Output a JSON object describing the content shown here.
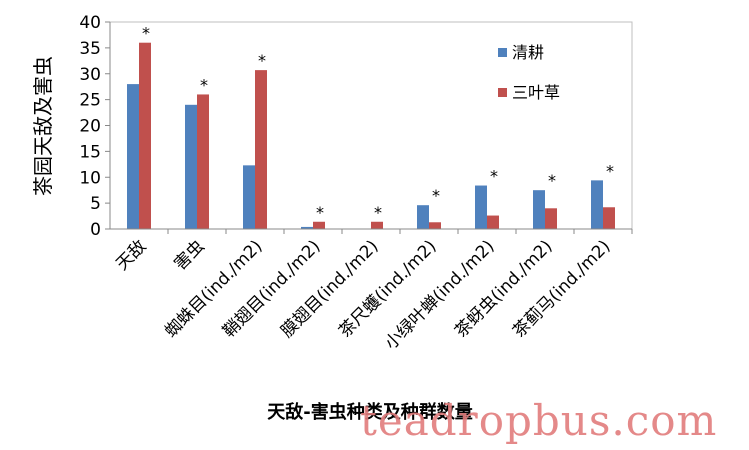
{
  "chart_data": {
    "type": "bar",
    "title": "",
    "xlabel": "天敌-害虫种类及种群数量",
    "ylabel": "茶园天敌及害虫",
    "ylim": [
      0,
      40
    ],
    "yticks": [
      0,
      5,
      10,
      15,
      20,
      25,
      30,
      35,
      40
    ],
    "categories": [
      "天敌",
      "害虫",
      "蜘蛛目(ind./m2)",
      "鞘翅目(ind./m2)",
      "膜翅目(ind./m2)",
      "茶尺蠖(ind./m2)",
      "小绿叶蝉(ind./m2)",
      "茶蚜虫(ind./m2)",
      "茶蓟马(ind./m2)"
    ],
    "series": [
      {
        "name": "清耕",
        "color": "#4f81bd",
        "values": [
          28,
          24,
          12.3,
          0.4,
          0,
          4.6,
          8.4,
          7.5,
          9.4
        ]
      },
      {
        "name": "三叶草",
        "color": "#c0504d",
        "values": [
          36,
          26,
          30.7,
          1.4,
          1.4,
          1.3,
          2.6,
          4.0,
          4.2
        ]
      }
    ],
    "annotations": [
      "*",
      "*",
      "*",
      "*",
      "*",
      "*",
      "*",
      "*",
      "*"
    ],
    "grid": false,
    "legend": "right"
  },
  "watermark": "teadropbus.com"
}
